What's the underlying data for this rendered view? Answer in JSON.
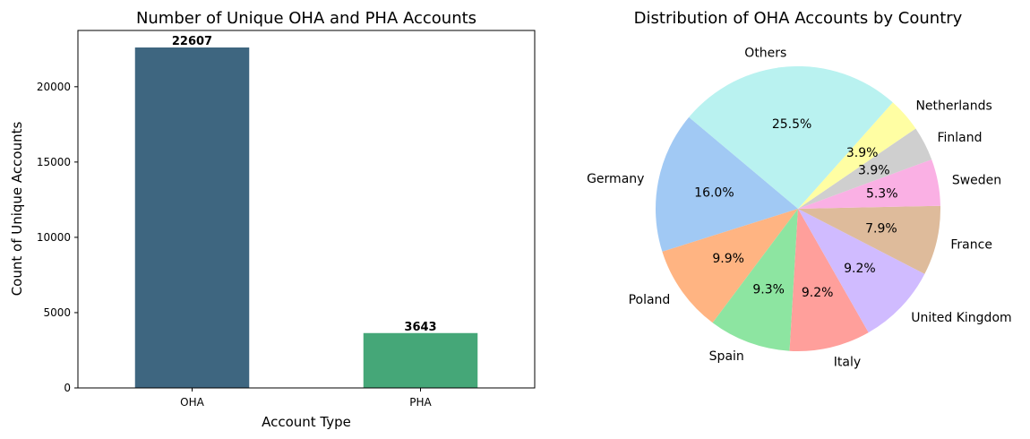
{
  "chart_data": [
    {
      "type": "bar",
      "title": "Number of Unique OHA and PHA Accounts",
      "xlabel": "Account Type",
      "ylabel": "Count of Unique Accounts",
      "categories": [
        "OHA",
        "PHA"
      ],
      "values": [
        22607,
        3643
      ],
      "data_labels": [
        "22607",
        "3643"
      ],
      "colors": [
        "#3e6680",
        "#45a778"
      ],
      "ylim": [
        0,
        23737
      ],
      "yticks": [
        0,
        5000,
        10000,
        15000,
        20000
      ],
      "ytick_labels": [
        "0",
        "5000",
        "10000",
        "15000",
        "20000"
      ],
      "grid": false
    },
    {
      "type": "pie",
      "title": "Distribution of OHA Accounts by Country",
      "start_angle_deg": 140,
      "slices": [
        {
          "label": "Germany",
          "value": 16.0,
          "pct_label": "16.0%",
          "color": "#a1c9f4"
        },
        {
          "label": "Poland",
          "value": 9.9,
          "pct_label": "9.9%",
          "color": "#ffb482"
        },
        {
          "label": "Spain",
          "value": 9.3,
          "pct_label": "9.3%",
          "color": "#8de5a1"
        },
        {
          "label": "Italy",
          "value": 9.2,
          "pct_label": "9.2%",
          "color": "#ff9f9b"
        },
        {
          "label": "United Kingdom",
          "value": 9.2,
          "pct_label": "9.2%",
          "color": "#d0bbff"
        },
        {
          "label": "France",
          "value": 7.9,
          "pct_label": "7.9%",
          "color": "#debb9b"
        },
        {
          "label": "Sweden",
          "value": 5.3,
          "pct_label": "5.3%",
          "color": "#fab0e4"
        },
        {
          "label": "Finland",
          "value": 3.9,
          "pct_label": "3.9%",
          "color": "#cfcfcf"
        },
        {
          "label": "Netherlands",
          "value": 3.9,
          "pct_label": "3.9%",
          "color": "#fffea3"
        },
        {
          "label": "Others",
          "value": 25.5,
          "pct_label": "25.5%",
          "color": "#b9f2f0"
        }
      ]
    }
  ]
}
